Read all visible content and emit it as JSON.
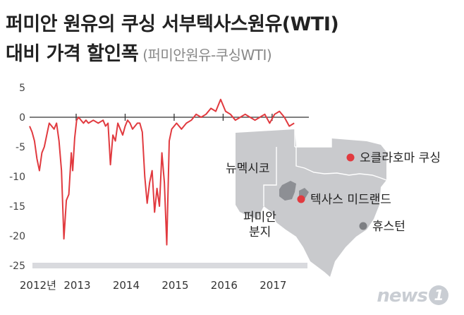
{
  "title": "퍼미안 원유의 쿠싱 서부텍사스원유(WTI)",
  "subtitle": "대비 가격 할인폭",
  "subtitle_note": "(퍼미안원유-쿠싱WTI)",
  "logo": {
    "text": "news",
    "mark": "1"
  },
  "colors": {
    "line": "#e13a3f",
    "axis": "#333333",
    "grid_bg": "#d9dade",
    "map": "#c9cacd",
    "map_dark": "#8d8f94",
    "marker_red": "#e13a3f",
    "marker_gray": "#7d7f83"
  },
  "chart_data": {
    "type": "line",
    "title": "퍼미안 원유의 쿠싱 서부텍사스원유(WTI) 대비 가격 할인폭",
    "ylim": [
      -25,
      5
    ],
    "yticks": [
      "5",
      "0",
      "-5",
      "-10",
      "-15",
      "-20",
      "-25"
    ],
    "ytick_values": [
      5,
      0,
      -5,
      -10,
      -15,
      -20,
      -25
    ],
    "xlim": [
      2012.0,
      2017.7
    ],
    "xtick_labels": [
      "2012년",
      "2013",
      "2014",
      "2015",
      "2016",
      "2017"
    ],
    "xtick_positions": [
      2012.2,
      2013.0,
      2014.0,
      2015.0,
      2016.0,
      2017.0
    ],
    "series": [
      {
        "values_x": [
          2012.0,
          2012.05,
          2012.1,
          2012.15,
          2012.2,
          2012.25,
          2012.3,
          2012.35,
          2012.4,
          2012.45,
          2012.5,
          2012.55,
          2012.6,
          2012.65,
          2012.7,
          2012.75,
          2012.8,
          2012.85,
          2012.88,
          2012.92,
          2012.96,
          2013.0,
          2013.05,
          2013.1,
          2013.15,
          2013.2,
          2013.3,
          2013.4,
          2013.5,
          2013.55,
          2013.6,
          2013.65,
          2013.7,
          2013.75,
          2013.8,
          2013.85,
          2013.9,
          2013.95,
          2014.0,
          2014.05,
          2014.1,
          2014.15,
          2014.2,
          2014.25,
          2014.3,
          2014.35,
          2014.4,
          2014.45,
          2014.5,
          2014.55,
          2014.6,
          2014.65,
          2014.7,
          2014.75,
          2014.8,
          2014.85,
          2014.9,
          2014.95,
          2015.0,
          2015.1,
          2015.2,
          2015.3,
          2015.4,
          2015.5,
          2015.6,
          2015.7,
          2015.8,
          2015.9,
          2016.0,
          2016.1,
          2016.2,
          2016.3,
          2016.4,
          2016.5,
          2016.6,
          2016.7,
          2016.8,
          2016.9,
          2017.0,
          2017.1,
          2017.2,
          2017.3,
          2017.4
        ],
        "values_y": [
          -1.5,
          -2.5,
          -4.0,
          -7.0,
          -9.0,
          -6.0,
          -5.0,
          -3.0,
          -1.0,
          -1.5,
          -2.0,
          -1.0,
          -4.0,
          -9.0,
          -20.5,
          -14.0,
          -13.0,
          -6.0,
          -9.0,
          -3.5,
          -0.5,
          0.0,
          -0.5,
          -1.0,
          -0.5,
          -1.0,
          -0.5,
          -1.0,
          -0.5,
          -1.5,
          -1.0,
          -8.0,
          -3.0,
          -4.0,
          -1.0,
          -2.0,
          -3.0,
          -1.5,
          -0.5,
          -1.0,
          -2.0,
          -1.5,
          -1.0,
          -1.0,
          -2.5,
          -10.0,
          -14.5,
          -11.0,
          -9.0,
          -16.0,
          -12.0,
          -15.0,
          -6.0,
          -11.0,
          -21.5,
          -4.0,
          -2.0,
          -1.5,
          -1.0,
          -2.0,
          -1.0,
          -0.5,
          0.5,
          0.0,
          0.5,
          1.5,
          1.0,
          3.0,
          1.0,
          0.5,
          -0.5,
          0.0,
          0.5,
          0.0,
          -0.5,
          0.0,
          0.5,
          -1.0,
          0.5,
          1.0,
          0.0,
          -1.5,
          -1.0
        ]
      }
    ],
    "map_labels": {
      "new_mexico": "뉴멕시코",
      "permian_basin": "퍼미안\n분지",
      "oklahoma_cushing": "오클라호마 쿠싱",
      "texas_midland": "텍사스 미드랜드",
      "houston": "휴스턴"
    }
  }
}
